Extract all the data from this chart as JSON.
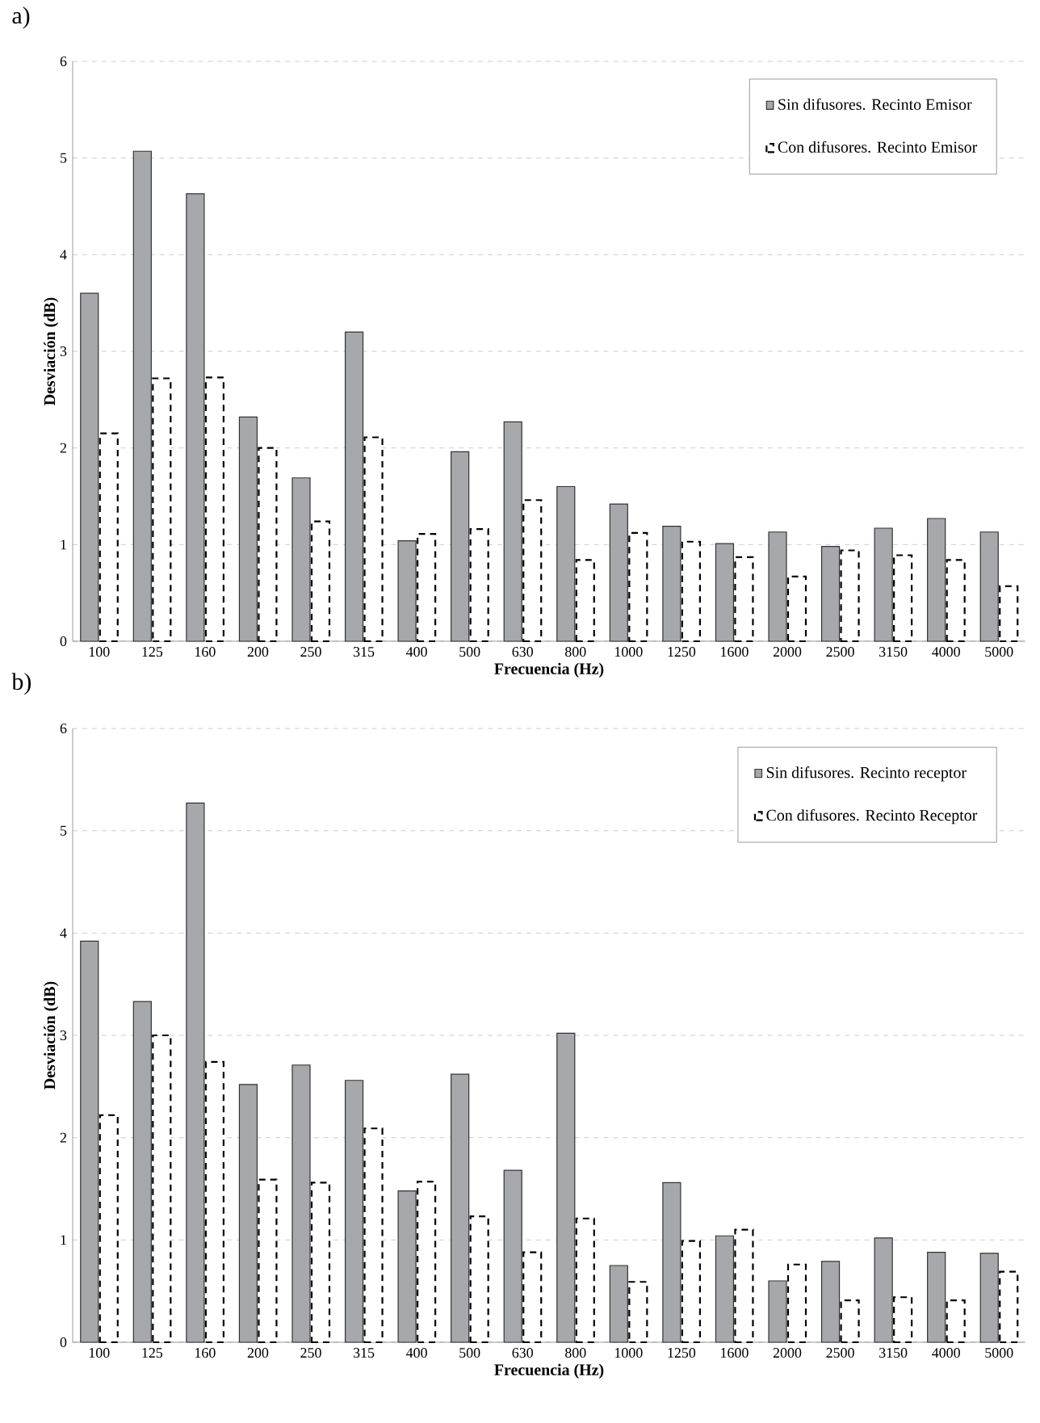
{
  "chart_data": [
    {
      "type": "bar",
      "title": "a)",
      "xlabel": "Frecuencia (Hz)",
      "ylabel": "Desviación (dB)",
      "categories": [
        "100",
        "125",
        "160",
        "200",
        "250",
        "315",
        "400",
        "500",
        "630",
        "800",
        "1000",
        "1250",
        "1600",
        "2000",
        "2500",
        "3150",
        "4000",
        "5000"
      ],
      "series": [
        {
          "name": "Sin difusores. Recinto Emisor",
          "color": "#a6a8ab",
          "values": [
            3.6,
            5.07,
            4.63,
            2.32,
            1.69,
            3.2,
            1.04,
            1.96,
            2.27,
            1.6,
            1.42,
            1.19,
            1.01,
            1.13,
            0.98,
            1.17,
            1.27,
            1.13
          ]
        },
        {
          "name": "Con difusores. Recinto Emisor",
          "color": "#ffffff",
          "line_style": "dashed",
          "values": [
            2.15,
            2.72,
            2.73,
            2.0,
            1.24,
            2.11,
            1.11,
            1.16,
            1.46,
            0.84,
            1.12,
            1.03,
            0.87,
            0.67,
            0.94,
            0.89,
            0.84,
            0.57
          ]
        }
      ],
      "ylim": [
        0,
        6
      ],
      "yticks": [
        0,
        1,
        2,
        3,
        4,
        5,
        6
      ],
      "grid": "y",
      "legend": "top right"
    },
    {
      "type": "bar",
      "title": "b)",
      "xlabel": "Frecuencia (Hz)",
      "ylabel": "Desviación (dB)",
      "categories": [
        "100",
        "125",
        "160",
        "200",
        "250",
        "315",
        "400",
        "500",
        "630",
        "800",
        "1000",
        "1250",
        "1600",
        "2000",
        "2500",
        "3150",
        "4000",
        "5000"
      ],
      "series": [
        {
          "name": "Sin difusores. Recinto receptor",
          "color": "#a6a8ab",
          "values": [
            3.92,
            3.33,
            5.27,
            2.52,
            2.71,
            2.56,
            1.48,
            2.62,
            1.68,
            3.02,
            0.75,
            1.56,
            1.04,
            0.6,
            0.79,
            1.02,
            0.88,
            0.87
          ]
        },
        {
          "name": "Con difusores. Recinto Receptor",
          "color": "#ffffff",
          "line_style": "dashed",
          "values": [
            2.22,
            3.0,
            2.74,
            1.59,
            1.56,
            2.09,
            1.57,
            1.23,
            0.88,
            1.21,
            0.59,
            0.99,
            1.1,
            0.76,
            0.41,
            0.44,
            0.41,
            0.69
          ]
        }
      ],
      "ylim": [
        0,
        6
      ],
      "yticks": [
        0,
        1,
        2,
        3,
        4,
        5,
        6
      ],
      "grid": "y",
      "legend": "top right"
    }
  ]
}
